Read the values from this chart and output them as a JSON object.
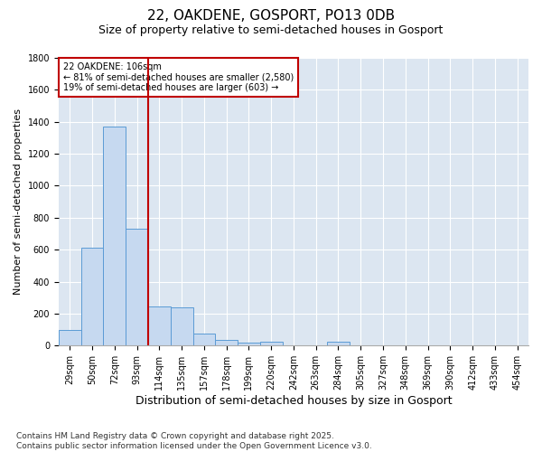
{
  "title": "22, OAKDENE, GOSPORT, PO13 0DB",
  "subtitle": "Size of property relative to semi-detached houses in Gosport",
  "xlabel": "Distribution of semi-detached houses by size in Gosport",
  "ylabel": "Number of semi-detached properties",
  "categories": [
    "29sqm",
    "50sqm",
    "72sqm",
    "93sqm",
    "114sqm",
    "135sqm",
    "157sqm",
    "178sqm",
    "199sqm",
    "220sqm",
    "242sqm",
    "263sqm",
    "284sqm",
    "305sqm",
    "327sqm",
    "348sqm",
    "369sqm",
    "390sqm",
    "412sqm",
    "433sqm",
    "454sqm"
  ],
  "values": [
    100,
    610,
    1370,
    730,
    245,
    240,
    75,
    35,
    20,
    25,
    0,
    0,
    25,
    0,
    0,
    0,
    0,
    0,
    0,
    0,
    0
  ],
  "bar_color": "#c6d9f0",
  "bar_edge_color": "#5b9bd5",
  "bar_highlight_color": "#c00000",
  "property_label": "22 OAKDENE: 106sqm",
  "annotation_line1": "← 81% of semi-detached houses are smaller (2,580)",
  "annotation_line2": "19% of semi-detached houses are larger (603) →",
  "vline_position": 3.5,
  "ylim": [
    0,
    1800
  ],
  "yticks": [
    0,
    200,
    400,
    600,
    800,
    1000,
    1200,
    1400,
    1600,
    1800
  ],
  "plot_bg_color": "#dce6f1",
  "footer": "Contains HM Land Registry data © Crown copyright and database right 2025.\nContains public sector information licensed under the Open Government Licence v3.0.",
  "title_fontsize": 11,
  "subtitle_fontsize": 9,
  "xlabel_fontsize": 9,
  "ylabel_fontsize": 8,
  "tick_fontsize": 7,
  "footer_fontsize": 6.5
}
